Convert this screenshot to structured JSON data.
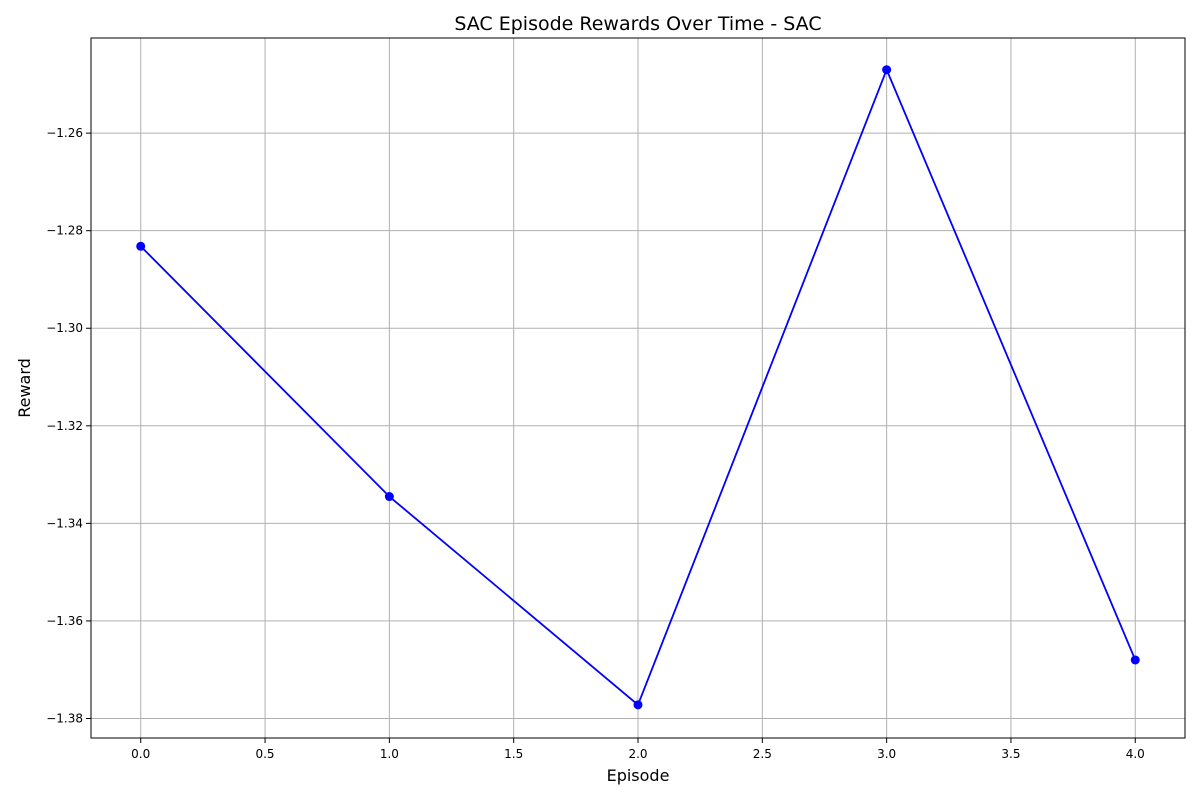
{
  "chart_data": {
    "type": "line",
    "title": "SAC Episode Rewards Over Time - SAC",
    "xlabel": "Episode",
    "ylabel": "Reward",
    "xlim": [
      -0.2,
      4.2
    ],
    "ylim": [
      -1.384,
      -1.2405
    ],
    "xticks": [
      0.0,
      0.5,
      1.0,
      1.5,
      2.0,
      2.5,
      3.0,
      3.5,
      4.0
    ],
    "xtick_labels": [
      "0.0",
      "0.5",
      "1.0",
      "1.5",
      "2.0",
      "2.5",
      "3.0",
      "3.5",
      "4.0"
    ],
    "yticks": [
      -1.38,
      -1.36,
      -1.34,
      -1.32,
      -1.3,
      -1.28,
      -1.26
    ],
    "ytick_labels": [
      "−1.38",
      "−1.36",
      "−1.34",
      "−1.32",
      "−1.30",
      "−1.28",
      "−1.26"
    ],
    "grid": true,
    "series": [
      {
        "x": [
          0,
          1,
          2,
          3,
          4
        ],
        "values": [
          -1.2832,
          -1.3345,
          -1.3772,
          -1.247,
          -1.368
        ],
        "color": "#0000ff",
        "marker": "circle"
      }
    ]
  }
}
